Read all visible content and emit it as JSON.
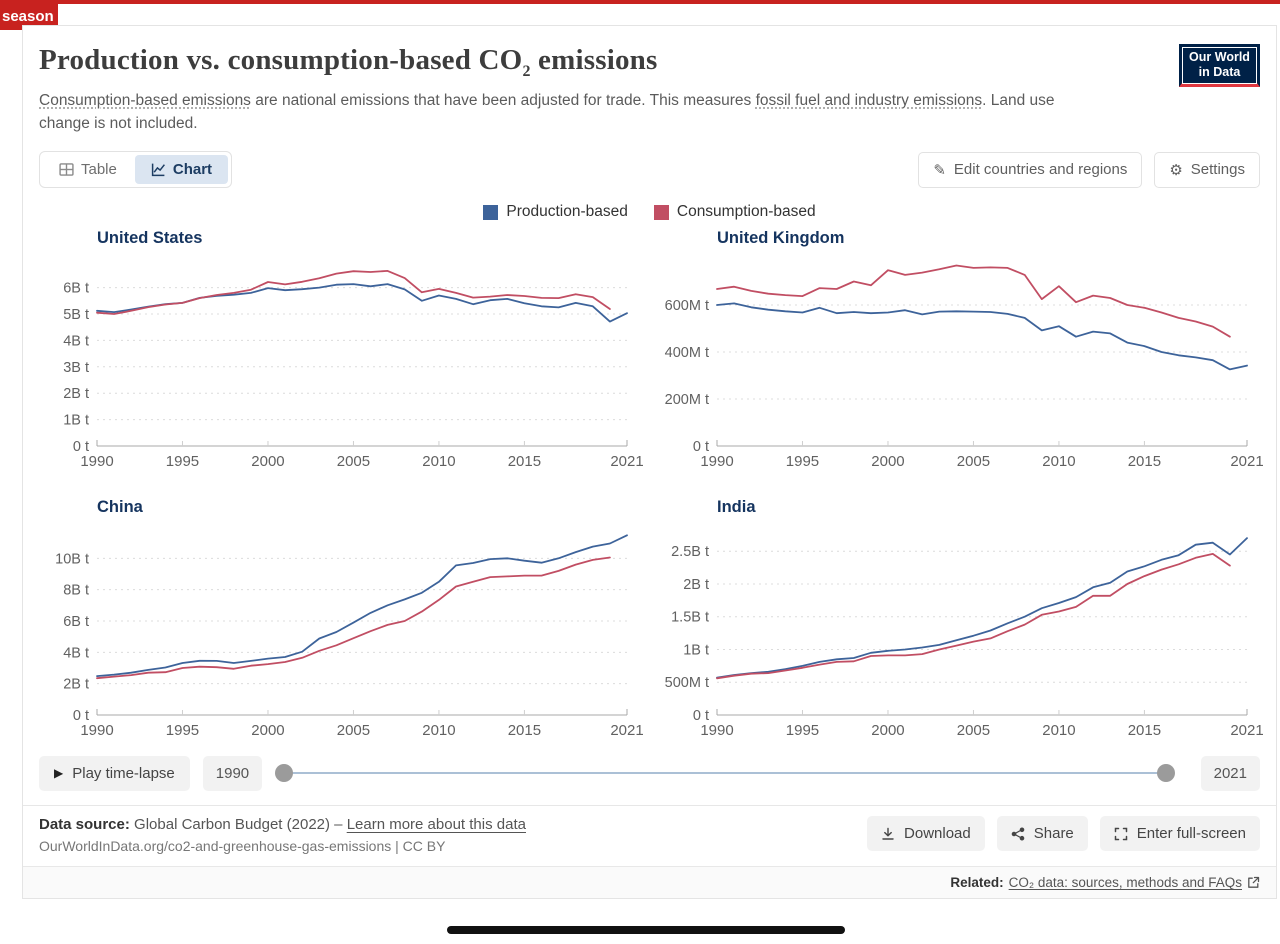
{
  "page": {
    "season_tab_label": "season"
  },
  "header": {
    "title_pre": "Production vs. consumption-based CO",
    "title_sub": "2",
    "title_post": " emissions",
    "subtitle": {
      "link1": "Consumption-based emissions",
      "text1": " are national emissions that have been adjusted for trade. This measures ",
      "link2": "fossil fuel and industry emissions",
      "text2": ". Land use change is not included."
    },
    "logo": {
      "line1": "Our World",
      "line2": "in Data"
    }
  },
  "toolbar": {
    "table_label": "Table",
    "chart_label": "Chart",
    "edit_label": "Edit countries and regions",
    "settings_label": "Settings"
  },
  "timeline": {
    "play_label": "Play time-lapse",
    "start_year": "1990",
    "end_year": "2021"
  },
  "footer": {
    "source_label": "Data source:",
    "source_text": " Global Carbon Budget (2022) – ",
    "learn_more_label": "Learn more about this data",
    "citation": "OurWorldInData.org/co2-and-greenhouse-gas-emissions | CC BY",
    "actions": [
      {
        "label": "Download"
      },
      {
        "label": "Share"
      },
      {
        "label": "Enter full-screen"
      }
    ]
  },
  "related": {
    "label": "Related:",
    "link_text": "CO₂ data: sources, methods and FAQs"
  },
  "chart_data": {
    "type": "line",
    "x_range": [
      1990,
      2021
    ],
    "xticks": [
      1990,
      1995,
      2000,
      2005,
      2010,
      2015,
      2021
    ],
    "grid": "dashed-horizontal",
    "legend_position": "top-center",
    "legend": [
      {
        "label": "Production-based",
        "color": "#3d639a"
      },
      {
        "label": "Consumption-based",
        "color": "#c14e63"
      }
    ],
    "charts": [
      {
        "title": "United States",
        "unit_scale": "billion tonnes",
        "ylim": [
          0,
          7.12
        ],
        "yticks": [
          [
            0,
            "0 t"
          ],
          [
            1,
            "1B t"
          ],
          [
            2,
            "2B t"
          ],
          [
            3,
            "3B t"
          ],
          [
            4,
            "4B t"
          ],
          [
            5,
            "5B t"
          ],
          [
            6,
            "6B t"
          ]
        ],
        "series": [
          {
            "name": "Production-based",
            "color": "#3d639a",
            "start_year": 1990,
            "values": [
              5.12,
              5.07,
              5.17,
              5.28,
              5.37,
              5.42,
              5.61,
              5.69,
              5.73,
              5.8,
              5.98,
              5.9,
              5.94,
              6.0,
              6.11,
              6.13,
              6.05,
              6.13,
              5.93,
              5.5,
              5.7,
              5.57,
              5.37,
              5.52,
              5.57,
              5.41,
              5.29,
              5.25,
              5.42,
              5.29,
              4.71,
              5.03
            ]
          },
          {
            "name": "Consumption-based",
            "color": "#c14e63",
            "start_year": 1990,
            "values": [
              5.05,
              5.0,
              5.12,
              5.26,
              5.36,
              5.42,
              5.6,
              5.72,
              5.8,
              5.92,
              6.21,
              6.12,
              6.22,
              6.35,
              6.53,
              6.62,
              6.59,
              6.63,
              6.36,
              5.82,
              5.95,
              5.8,
              5.62,
              5.66,
              5.72,
              5.68,
              5.61,
              5.6,
              5.75,
              5.64,
              5.19
            ]
          }
        ]
      },
      {
        "title": "United Kingdom",
        "unit_scale": "million tonnes",
        "ylim": [
          0,
          800
        ],
        "yticks": [
          [
            0,
            "0 t"
          ],
          [
            200,
            "200M t"
          ],
          [
            400,
            "400M t"
          ],
          [
            600,
            "600M t"
          ]
        ],
        "series": [
          {
            "name": "Production-based",
            "color": "#3d639a",
            "start_year": 1990,
            "values": [
              600,
              607,
              590,
              580,
              573,
              568,
              588,
              565,
              570,
              565,
              568,
              578,
              560,
              572,
              573,
              572,
              570,
              562,
              545,
              492,
              510,
              465,
              487,
              479,
              440,
              425,
              400,
              386,
              377,
              365,
              326,
              342
            ]
          },
          {
            "name": "Consumption-based",
            "color": "#c14e63",
            "start_year": 1990,
            "values": [
              668,
              678,
              660,
              648,
              642,
              638,
              672,
              668,
              700,
              684,
              748,
              728,
              738,
              752,
              768,
              758,
              760,
              758,
              728,
              625,
              680,
              612,
              640,
              630,
              600,
              588,
              568,
              545,
              530,
              508,
              465
            ]
          }
        ]
      },
      {
        "title": "China",
        "unit_scale": "billion tonnes",
        "ylim": [
          0,
          12.0
        ],
        "yticks": [
          [
            0,
            "0 t"
          ],
          [
            2,
            "2B t"
          ],
          [
            4,
            "4B t"
          ],
          [
            6,
            "6B t"
          ],
          [
            8,
            "8B t"
          ],
          [
            10,
            "10B t"
          ]
        ],
        "series": [
          {
            "name": "Production-based",
            "color": "#3d639a",
            "start_year": 1990,
            "values": [
              2.48,
              2.58,
              2.7,
              2.88,
              3.03,
              3.32,
              3.46,
              3.45,
              3.32,
              3.45,
              3.6,
              3.7,
              4.04,
              4.88,
              5.3,
              5.9,
              6.52,
              7.0,
              7.38,
              7.8,
              8.5,
              9.55,
              9.7,
              9.95,
              10.0,
              9.85,
              9.72,
              10.0,
              10.4,
              10.75,
              10.95,
              11.47
            ]
          },
          {
            "name": "Consumption-based",
            "color": "#c14e63",
            "start_year": 1990,
            "values": [
              2.35,
              2.45,
              2.55,
              2.7,
              2.73,
              3.0,
              3.08,
              3.05,
              2.95,
              3.15,
              3.25,
              3.38,
              3.65,
              4.1,
              4.45,
              4.9,
              5.35,
              5.75,
              6.0,
              6.6,
              7.35,
              8.2,
              8.5,
              8.8,
              8.85,
              8.9,
              8.9,
              9.2,
              9.6,
              9.9,
              10.05
            ]
          }
        ]
      },
      {
        "title": "India",
        "unit_scale": "billion tonnes",
        "ylim": [
          0,
          2.87
        ],
        "yticks": [
          [
            0,
            "0 t"
          ],
          [
            0.5,
            "500M t"
          ],
          [
            1,
            "1B t"
          ],
          [
            1.5,
            "1.5B t"
          ],
          [
            2,
            "2B t"
          ],
          [
            2.5,
            "2.5B t"
          ]
        ],
        "series": [
          {
            "name": "Production-based",
            "color": "#3d639a",
            "start_year": 1990,
            "values": [
              0.57,
              0.61,
              0.64,
              0.66,
              0.7,
              0.75,
              0.81,
              0.85,
              0.87,
              0.95,
              0.98,
              1.0,
              1.03,
              1.07,
              1.14,
              1.21,
              1.29,
              1.4,
              1.5,
              1.63,
              1.71,
              1.8,
              1.95,
              2.02,
              2.19,
              2.27,
              2.37,
              2.44,
              2.6,
              2.63,
              2.45,
              2.7
            ]
          },
          {
            "name": "Consumption-based",
            "color": "#c14e63",
            "start_year": 1990,
            "values": [
              0.56,
              0.6,
              0.63,
              0.64,
              0.68,
              0.72,
              0.77,
              0.81,
              0.82,
              0.9,
              0.91,
              0.91,
              0.93,
              1.0,
              1.06,
              1.12,
              1.17,
              1.28,
              1.38,
              1.53,
              1.58,
              1.65,
              1.82,
              1.82,
              2.0,
              2.12,
              2.22,
              2.3,
              2.4,
              2.46,
              2.28
            ]
          }
        ]
      }
    ]
  }
}
